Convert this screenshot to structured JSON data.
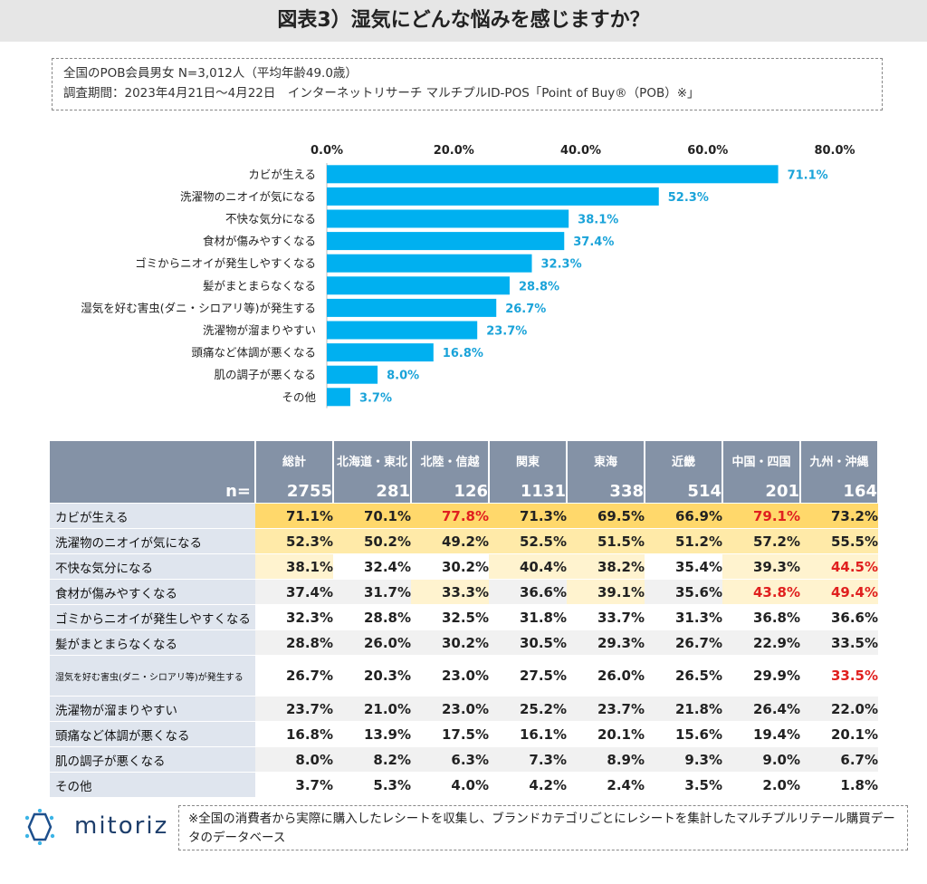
{
  "title": "図表3）湿気にどんな悩みを感じますか？",
  "info": {
    "line1": "全国のPOB会員男女 N=3,012人（平均年齢49.0歳）",
    "line2": "調査期間：2023年4月21日～4月22日　インターネットリサーチ マルチプルID-POS「Point of Buy®（POB）※」"
  },
  "chart_data": {
    "type": "bar",
    "orientation": "horizontal",
    "categories": [
      "カビが生える",
      "洗濯物のニオイが気になる",
      "不快な気分になる",
      "食材が傷みやすくなる",
      "ゴミからニオイが発生しやすくなる",
      "髪がまとまらなくなる",
      "湿気を好む害虫(ダニ・シロアリ等)が発生する",
      "洗濯物が溜まりやすい",
      "頭痛など体調が悪くなる",
      "肌の調子が悪くなる",
      "その他"
    ],
    "values": [
      71.1,
      52.3,
      38.1,
      37.4,
      32.3,
      28.8,
      26.7,
      23.7,
      16.8,
      8.0,
      3.7
    ],
    "value_labels": [
      "71.1%",
      "52.3%",
      "38.1%",
      "37.4%",
      "32.3%",
      "28.8%",
      "26.7%",
      "23.7%",
      "16.8%",
      "8.0%",
      "3.7%"
    ],
    "xticks": [
      "0.0%",
      "20.0%",
      "40.0%",
      "60.0%",
      "80.0%"
    ],
    "xlim": [
      0,
      80
    ],
    "bar_color": "#00b0f0",
    "label_color": "#1aa3d9",
    "axis_position": "top"
  },
  "table": {
    "n_label": "n=",
    "columns": [
      "総計",
      "北海道・東北",
      "北陸・信越",
      "関東",
      "東海",
      "近畿",
      "中国・四国",
      "九州・沖縄"
    ],
    "n": [
      "2755",
      "281",
      "126",
      "1131",
      "338",
      "514",
      "201",
      "164"
    ],
    "rows": [
      {
        "label": "カビが生える",
        "values": [
          "71.1%",
          "70.1%",
          "77.8%",
          "71.3%",
          "69.5%",
          "66.9%",
          "79.1%",
          "73.2%"
        ]
      },
      {
        "label": "洗濯物のニオイが気になる",
        "values": [
          "52.3%",
          "50.2%",
          "49.2%",
          "52.5%",
          "51.5%",
          "51.2%",
          "57.2%",
          "55.5%"
        ]
      },
      {
        "label": "不快な気分になる",
        "values": [
          "38.1%",
          "32.4%",
          "30.2%",
          "40.4%",
          "38.2%",
          "35.4%",
          "39.3%",
          "44.5%"
        ]
      },
      {
        "label": "食材が傷みやすくなる",
        "values": [
          "37.4%",
          "31.7%",
          "33.3%",
          "36.6%",
          "39.1%",
          "35.6%",
          "43.8%",
          "49.4%"
        ]
      },
      {
        "label": "ゴミからニオイが発生しやすくなる",
        "values": [
          "32.3%",
          "28.8%",
          "32.5%",
          "31.8%",
          "33.7%",
          "31.3%",
          "36.8%",
          "36.6%"
        ]
      },
      {
        "label": "髪がまとまらなくなる",
        "values": [
          "28.8%",
          "26.0%",
          "30.2%",
          "30.5%",
          "29.3%",
          "26.7%",
          "22.9%",
          "33.5%"
        ]
      },
      {
        "label": "湿気を好む害虫(ダニ・シロアリ等)が発生する",
        "values": [
          "26.7%",
          "20.3%",
          "23.0%",
          "27.5%",
          "26.0%",
          "26.5%",
          "29.9%",
          "33.5%"
        ]
      },
      {
        "label": "洗濯物が溜まりやすい",
        "values": [
          "23.7%",
          "21.0%",
          "23.0%",
          "25.2%",
          "23.7%",
          "21.8%",
          "26.4%",
          "22.0%"
        ]
      },
      {
        "label": "頭痛など体調が悪くなる",
        "values": [
          "16.8%",
          "13.9%",
          "17.5%",
          "16.1%",
          "20.1%",
          "15.6%",
          "19.4%",
          "20.1%"
        ]
      },
      {
        "label": "肌の調子が悪くなる",
        "values": [
          "8.0%",
          "8.2%",
          "6.3%",
          "7.3%",
          "8.9%",
          "9.3%",
          "9.0%",
          "6.7%"
        ]
      },
      {
        "label": "その他",
        "values": [
          "3.7%",
          "5.3%",
          "4.0%",
          "4.2%",
          "2.4%",
          "3.5%",
          "2.0%",
          "1.8%"
        ]
      }
    ],
    "highlight_colors": {
      "high": "#ffd86b",
      "mid": "#ffeaa8",
      "low": "#fff3cf",
      "red_text": "#e0201f"
    }
  },
  "footer": {
    "logo_text": "mitoriz",
    "note": "※全国の消費者から実際に購入したレシートを収集し、ブランドカテゴリごとにレシートを集計したマルチプルリテール購買データのデータベース"
  }
}
